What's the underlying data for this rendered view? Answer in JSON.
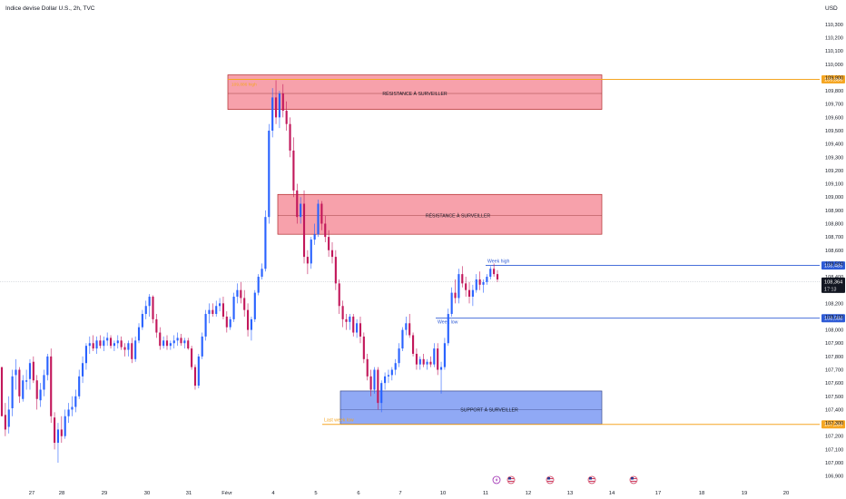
{
  "header": {
    "symbol_title": "Indice devise Dollar U.S., 2h, TVC",
    "currency": "USD"
  },
  "colors": {
    "bull": "#2962ff",
    "bear": "#c2185b",
    "resistance_fill": "#f7a1ab",
    "resistance_border": "#b02a2a",
    "support_fill": "#90a9f5",
    "support_border": "#3b4a8a",
    "orange": "#f5a623",
    "blue_line": "#2e5bd6",
    "price_badge": "#131722"
  },
  "chart_data": {
    "type": "candlestick",
    "y_axis": {
      "min": 106.9,
      "max": 110.35,
      "tick_step": 0.1,
      "tick_labels": [
        "110,300",
        "110,200",
        "110,100",
        "110,000",
        "109,900",
        "109,800",
        "109,700",
        "109,600",
        "109,500",
        "109,400",
        "109,300",
        "109,200",
        "109,100",
        "109,000",
        "108,900",
        "108,800",
        "108,700",
        "108,600",
        "108,500",
        "108,400",
        "108,300",
        "108,200",
        "108,100",
        "108,000",
        "107,900",
        "107,800",
        "107,700",
        "107,600",
        "107,500",
        "107,400",
        "107,300",
        "107,200",
        "107,100",
        "107,000",
        "106,900"
      ]
    },
    "x_axis": {
      "tick_labels": [
        "27",
        "28",
        "29",
        "30",
        "31",
        "Févr",
        "4",
        "5",
        "6",
        "7",
        "10",
        "11",
        "12",
        "13",
        "14",
        "17",
        "18",
        "19",
        "20"
      ]
    },
    "candles": [
      [
        107.72,
        107.72,
        107.38,
        107.35
      ],
      [
        107.36,
        107.45,
        107.2,
        107.25
      ],
      [
        107.27,
        107.5,
        107.22,
        107.4
      ],
      [
        107.41,
        107.7,
        107.35,
        107.65
      ],
      [
        107.66,
        107.78,
        107.55,
        107.7
      ],
      [
        107.7,
        107.72,
        107.45,
        107.5
      ],
      [
        107.48,
        107.66,
        107.46,
        107.62
      ],
      [
        107.61,
        107.7,
        107.55,
        107.62
      ],
      [
        107.63,
        107.78,
        107.55,
        107.75
      ],
      [
        107.76,
        107.8,
        107.6,
        107.62
      ],
      [
        107.62,
        107.66,
        107.4,
        107.48
      ],
      [
        107.47,
        107.6,
        107.42,
        107.55
      ],
      [
        107.55,
        107.7,
        107.5,
        107.66
      ],
      [
        107.66,
        107.82,
        107.62,
        107.8
      ],
      [
        107.8,
        107.86,
        107.3,
        107.35
      ],
      [
        107.34,
        107.38,
        107.1,
        107.15
      ],
      [
        107.15,
        107.3,
        107.0,
        107.25
      ],
      [
        107.25,
        107.35,
        107.15,
        107.2
      ],
      [
        107.2,
        107.4,
        107.18,
        107.35
      ],
      [
        107.35,
        107.45,
        107.3,
        107.4
      ],
      [
        107.4,
        107.5,
        107.35,
        107.42
      ],
      [
        107.42,
        107.55,
        107.38,
        107.5
      ],
      [
        107.5,
        107.7,
        107.48,
        107.65
      ],
      [
        107.65,
        107.8,
        107.6,
        107.75
      ],
      [
        107.75,
        107.9,
        107.7,
        107.88
      ],
      [
        107.88,
        107.95,
        107.82,
        107.9
      ],
      [
        107.9,
        107.96,
        107.84,
        107.86
      ],
      [
        107.86,
        107.95,
        107.82,
        107.92
      ],
      [
        107.92,
        107.96,
        107.86,
        107.88
      ],
      [
        107.88,
        107.95,
        107.84,
        107.92
      ],
      [
        107.92,
        107.98,
        107.88,
        107.94
      ],
      [
        107.94,
        107.96,
        107.86,
        107.88
      ],
      [
        107.88,
        107.92,
        107.84,
        107.9
      ],
      [
        107.9,
        107.96,
        107.86,
        107.92
      ],
      [
        107.92,
        107.95,
        107.85,
        107.87
      ],
      [
        107.87,
        107.9,
        107.8,
        107.85
      ],
      [
        107.85,
        107.92,
        107.8,
        107.9
      ],
      [
        107.9,
        107.94,
        107.75,
        107.78
      ],
      [
        107.78,
        107.95,
        107.76,
        107.92
      ],
      [
        107.92,
        108.05,
        107.9,
        108.02
      ],
      [
        108.02,
        108.15,
        108.0,
        108.12
      ],
      [
        108.12,
        108.22,
        108.08,
        108.18
      ],
      [
        108.18,
        108.27,
        108.1,
        108.25
      ],
      [
        108.25,
        108.26,
        108.05,
        108.08
      ],
      [
        108.08,
        108.12,
        107.94,
        107.98
      ],
      [
        107.98,
        108.02,
        107.85,
        107.88
      ],
      [
        107.88,
        107.95,
        107.86,
        107.92
      ],
      [
        107.92,
        107.96,
        107.85,
        107.88
      ],
      [
        107.88,
        107.92,
        107.85,
        107.9
      ],
      [
        107.9,
        107.96,
        107.86,
        107.92
      ],
      [
        107.92,
        107.98,
        107.88,
        107.94
      ],
      [
        107.94,
        107.97,
        107.88,
        107.9
      ],
      [
        107.9,
        107.94,
        107.86,
        107.92
      ],
      [
        107.92,
        107.94,
        107.85,
        107.86
      ],
      [
        107.86,
        107.88,
        107.7,
        107.72
      ],
      [
        107.72,
        107.74,
        107.55,
        107.58
      ],
      [
        107.58,
        107.82,
        107.56,
        107.8
      ],
      [
        107.8,
        107.98,
        107.78,
        107.95
      ],
      [
        107.95,
        108.15,
        107.92,
        108.12
      ],
      [
        108.12,
        108.2,
        108.05,
        108.15
      ],
      [
        108.15,
        108.2,
        108.1,
        108.12
      ],
      [
        108.12,
        108.22,
        108.1,
        108.18
      ],
      [
        108.18,
        108.24,
        108.14,
        108.2
      ],
      [
        108.2,
        108.25,
        108.08,
        108.1
      ],
      [
        108.1,
        108.14,
        107.98,
        108.02
      ],
      [
        108.02,
        108.1,
        108.0,
        108.08
      ],
      [
        108.08,
        108.28,
        108.06,
        108.25
      ],
      [
        108.25,
        108.35,
        108.2,
        108.3
      ],
      [
        108.3,
        108.36,
        108.2,
        108.24
      ],
      [
        108.24,
        108.3,
        108.1,
        108.15
      ],
      [
        108.15,
        108.2,
        107.95,
        108.0
      ],
      [
        108.0,
        108.1,
        107.92,
        108.08
      ],
      [
        108.08,
        108.3,
        108.06,
        108.28
      ],
      [
        108.28,
        108.42,
        108.26,
        108.4
      ],
      [
        108.4,
        108.5,
        108.38,
        108.46
      ],
      [
        108.46,
        108.9,
        108.44,
        108.85
      ],
      [
        108.85,
        109.55,
        108.8,
        109.5
      ],
      [
        109.5,
        109.82,
        109.45,
        109.75
      ],
      [
        109.75,
        109.88,
        109.55,
        109.6
      ],
      [
        109.6,
        109.8,
        109.52,
        109.78
      ],
      [
        109.78,
        109.85,
        109.6,
        109.65
      ],
      [
        109.65,
        109.72,
        109.5,
        109.55
      ],
      [
        109.55,
        109.6,
        109.3,
        109.35
      ],
      [
        109.35,
        109.45,
        109.0,
        109.05
      ],
      [
        109.05,
        109.1,
        108.8,
        108.85
      ],
      [
        108.85,
        109.0,
        108.8,
        108.95
      ],
      [
        108.95,
        109.05,
        108.5,
        108.55
      ],
      [
        108.55,
        108.6,
        108.42,
        108.5
      ],
      [
        108.5,
        108.7,
        108.46,
        108.68
      ],
      [
        108.68,
        108.8,
        108.64,
        108.72
      ],
      [
        108.72,
        108.98,
        108.7,
        108.95
      ],
      [
        108.95,
        108.97,
        108.75,
        108.8
      ],
      [
        108.8,
        108.86,
        108.66,
        108.7
      ],
      [
        108.7,
        108.75,
        108.55,
        108.6
      ],
      [
        108.6,
        108.66,
        108.5,
        108.55
      ],
      [
        108.55,
        108.6,
        108.3,
        108.35
      ],
      [
        108.35,
        108.38,
        108.12,
        108.18
      ],
      [
        108.18,
        108.22,
        108.02,
        108.08
      ],
      [
        108.08,
        108.12,
        108.0,
        108.06
      ],
      [
        108.06,
        108.12,
        108.0,
        108.1
      ],
      [
        108.1,
        108.12,
        107.95,
        107.98
      ],
      [
        107.98,
        108.08,
        107.94,
        108.05
      ],
      [
        108.05,
        108.1,
        107.9,
        107.95
      ],
      [
        107.95,
        107.98,
        107.75,
        107.78
      ],
      [
        107.78,
        107.82,
        107.62,
        107.65
      ],
      [
        107.65,
        107.7,
        107.5,
        107.55
      ],
      [
        107.55,
        107.72,
        107.52,
        107.7
      ],
      [
        107.7,
        107.72,
        107.4,
        107.45
      ],
      [
        107.45,
        107.62,
        107.38,
        107.6
      ],
      [
        107.6,
        107.68,
        107.55,
        107.65
      ],
      [
        107.65,
        107.7,
        107.6,
        107.66
      ],
      [
        107.66,
        107.72,
        107.62,
        107.7
      ],
      [
        107.7,
        107.78,
        107.66,
        107.75
      ],
      [
        107.75,
        107.9,
        107.72,
        107.86
      ],
      [
        107.86,
        108.02,
        107.84,
        108.0
      ],
      [
        108.0,
        108.1,
        107.96,
        108.05
      ],
      [
        108.05,
        108.12,
        107.94,
        107.96
      ],
      [
        107.96,
        107.98,
        107.8,
        107.82
      ],
      [
        107.82,
        107.86,
        107.7,
        107.74
      ],
      [
        107.74,
        107.8,
        107.7,
        107.78
      ],
      [
        107.78,
        107.82,
        107.72,
        107.74
      ],
      [
        107.74,
        107.78,
        107.7,
        107.76
      ],
      [
        107.76,
        107.8,
        107.72,
        107.74
      ],
      [
        107.74,
        107.9,
        107.72,
        107.86
      ],
      [
        107.86,
        107.9,
        107.66,
        107.7
      ],
      [
        107.7,
        107.76,
        107.52,
        107.72
      ],
      [
        107.72,
        107.94,
        107.7,
        107.9
      ],
      [
        107.9,
        108.16,
        107.88,
        108.12
      ],
      [
        108.12,
        108.32,
        108.1,
        108.28
      ],
      [
        108.28,
        108.38,
        108.2,
        108.24
      ],
      [
        108.24,
        108.46,
        108.2,
        108.42
      ],
      [
        108.42,
        108.48,
        108.32,
        108.35
      ],
      [
        108.35,
        108.4,
        108.25,
        108.3
      ],
      [
        108.3,
        108.36,
        108.2,
        108.25
      ],
      [
        108.25,
        108.34,
        108.18,
        108.3
      ],
      [
        108.3,
        108.42,
        108.28,
        108.38
      ],
      [
        108.38,
        108.44,
        108.3,
        108.34
      ],
      [
        108.34,
        108.38,
        108.28,
        108.36
      ],
      [
        108.36,
        108.42,
        108.34,
        108.4
      ],
      [
        108.4,
        108.48,
        108.38,
        108.46
      ],
      [
        108.46,
        108.5,
        108.4,
        108.42
      ],
      [
        108.42,
        108.45,
        108.36,
        108.38
      ]
    ],
    "zones": [
      {
        "label": "RÉSISTANCE À SURVEILLER",
        "top": 109.92,
        "bottom": 109.66,
        "mid": 109.78
      },
      {
        "label": "RÉSISTANCE À SURVEILLER",
        "top": 109.02,
        "bottom": 108.72,
        "mid": 108.86
      },
      {
        "label": "SUPPORT À SURVEILLER",
        "top": 107.54,
        "bottom": 107.29,
        "mid": 107.4
      }
    ],
    "levels": [
      {
        "label": "",
        "value": 109.886,
        "badge": "109,886"
      },
      {
        "label": "Week high",
        "value": 108.485,
        "badge": "108,485"
      },
      {
        "label": "Week low",
        "value": 108.088,
        "badge": "108,088"
      },
      {
        "label": "Last week low",
        "value": 107.289,
        "badge": "107,289"
      }
    ],
    "current_price": {
      "value": 108.364,
      "badge": "108,364",
      "countdown": "17:13"
    },
    "top_zone_tag": "109,886 high"
  }
}
